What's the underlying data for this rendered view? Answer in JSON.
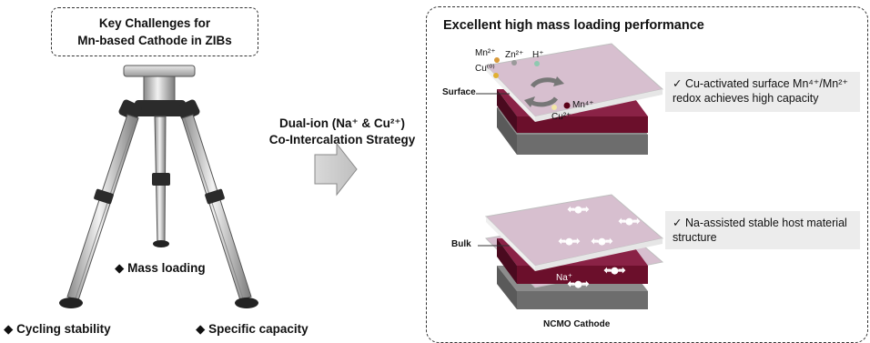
{
  "left_panel": {
    "title_line1": "Key Challenges for",
    "title_line2": "Mn-based Cathode in ZIBs",
    "label_mass": "◆ Mass loading",
    "label_cycling": "◆ Cycling stability",
    "label_capacity": "◆ Specific capacity"
  },
  "strategy": {
    "line1": "Dual-ion (Na⁺ & Cu²⁺)",
    "line2": "Co-Intercalation Strategy"
  },
  "right_panel": {
    "title": "Excellent high mass loading performance",
    "surface_label": "Surface",
    "bulk_label": "Bulk",
    "cathode_label": "NCMO Cathode",
    "ions": {
      "mn2": "Mn²⁺",
      "zn2": "Zn²⁺",
      "h": "H⁺",
      "cu0": "Cu⁽⁰⁾",
      "mn4": "Mn⁴⁺",
      "cu2": "Cu²⁺",
      "na": "Na⁺"
    },
    "note_surface_line1": "✓ Cu-activated surface Mn⁴⁺/Mn²⁺",
    "note_surface_line2": "redox achieves high capacity",
    "note_bulk_line1": "✓  Na-assisted stable host material",
    "note_bulk_line2": "structure"
  },
  "colors": {
    "maroon": "#6b0f2b",
    "pink_layer": "#d7bfcf",
    "gray_layer": "#6d6d6d",
    "note_bg": "#ececec"
  }
}
